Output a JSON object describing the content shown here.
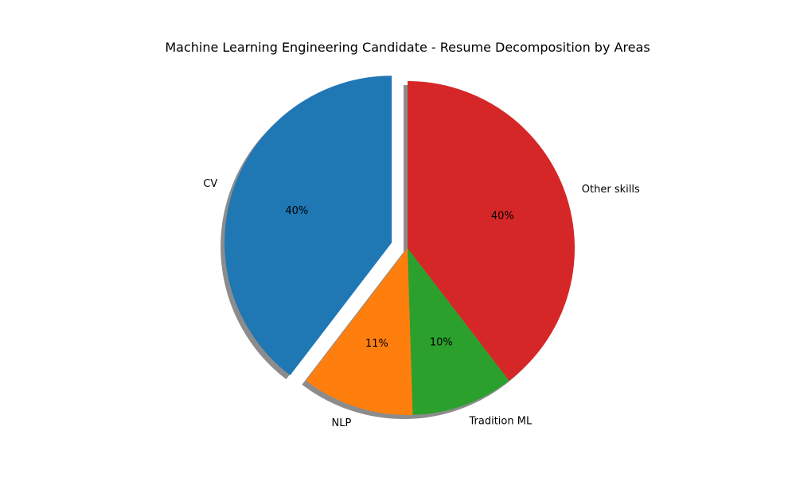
{
  "chart_data": {
    "type": "pie",
    "title": "Machine Learning Engineering Candidate - Resume Decomposition by Areas",
    "categories": [
      "CV",
      "NLP",
      "Tradition ML",
      "Other skills"
    ],
    "values": [
      40,
      11,
      10,
      40
    ],
    "percent_labels": [
      "40%",
      "11%",
      "10%",
      "40%"
    ],
    "colors": [
      "#1f77b4",
      "#ff7f0e",
      "#2ca02c",
      "#d62728"
    ],
    "explode": [
      0.1,
      0,
      0,
      0
    ],
    "start_angle_deg": 90,
    "shadow": true,
    "legend": "none"
  }
}
